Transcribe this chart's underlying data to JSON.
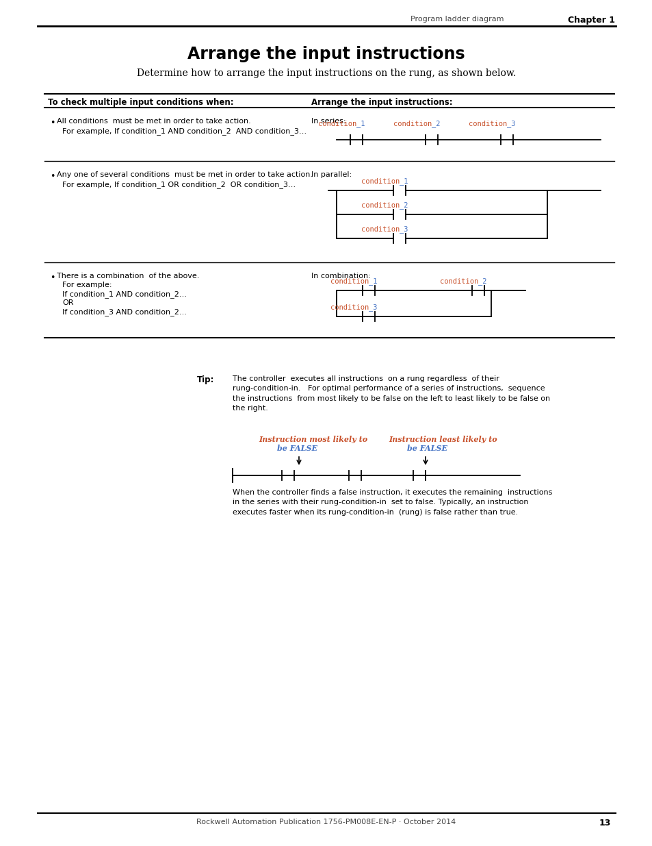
{
  "page_title": "Arrange the input instructions",
  "subtitle": "Determine how to arrange the input instructions on the rung, as shown below.",
  "header_left": "To check multiple input conditions when:",
  "header_right": "Arrange the input instructions:",
  "chapter_header": "Program ladder diagram",
  "chapter_bold": "Chapter 1",
  "page_number": "13",
  "footer_text": "Rockwell Automation Publication 1756-PM008E-EN-P · October 2014",
  "row1_left_bullet": "All conditions  must be met in order to take action.",
  "row1_left_example": "For example, If condition_1 AND condition_2  AND condition_3…",
  "row2_left_bullet": "Any one of several conditions  must be met in order to take action.",
  "row2_left_example": "For example, If condition_1 OR condition_2  OR condition_3…",
  "row2_right_label": "In parallel:",
  "row3_left_bullet": "There is a combination  of the above.",
  "row3_left_lines": [
    "For example:",
    "If condition_1 AND condition_2…",
    "OR",
    "If condition_3 AND condition_2…"
  ],
  "row3_right_label": "In combination:",
  "row3_right_conditions_top": [
    "condition_1",
    "condition_2"
  ],
  "row3_right_condition_bottom": "condition_3",
  "tip_label": "Tip:",
  "tip_text": "The controller  executes all instructions  on a rung regardless  of their\nrung-condition-in.   For optimal performance of a series of instructions,  sequence\nthe instructions  from most likely to be false on the left to least likely to be false on\nthe right.",
  "tip_below_text": "When the controller finds a false instruction, it executes the remaining  instructions\nin the series with their rung-condition-in  set to false. Typically, an instruction\nexecutes faster when its rung-condition-in  (rung) is false rather than true.",
  "bg_color": "#ffffff",
  "text_color": "#000000",
  "cond_color1": "#c8502a",
  "cond_color2": "#4472c4",
  "tip_instr_color1": "#c8502a",
  "tip_instr_color2": "#4472c4"
}
